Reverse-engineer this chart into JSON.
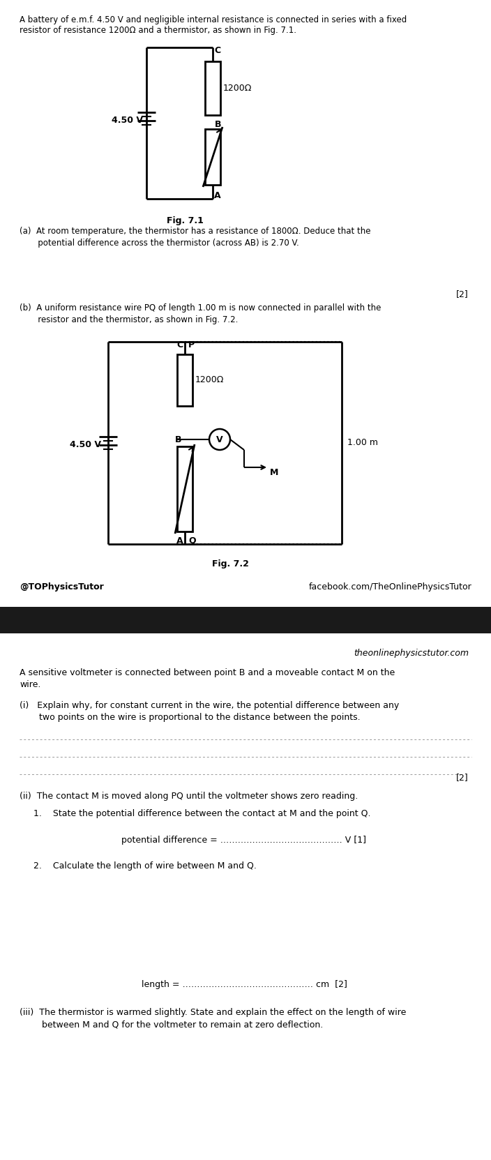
{
  "page_bg": "#ffffff",
  "dark_band_color": "#1a1a1a",
  "text_color": "#000000",
  "intro_text": "A battery of e.m.f. 4.50 V and negligible internal resistance is connected in series with a fixed\nresistor of resistance 1200Ω and a thermistor, as shown in Fig. 7.1.",
  "fig71_label": "Fig. 7.1",
  "fig72_label": "Fig. 7.2",
  "part_a_text_1": "(a)  At room temperature, the thermistor has a resistance of 1800Ω. Deduce that the",
  "part_a_text_2": "       potential difference across the thermistor (across AB) is 2.70 V.",
  "marks_2": "[2]",
  "part_b_text_1": "(b)  A uniform resistance wire PQ of length 1.00 m is now connected in parallel with the",
  "part_b_text_2": "       resistor and the thermistor, as shown in Fig. 7.2.",
  "social_left": "@TOPhysicsTutor",
  "social_right": "facebook.com/TheOnlinePhysicsTutor",
  "website": "theonlinephysicstutor.com",
  "continue_line1": "A sensitive voltmeter is connected between point B and a moveable contact M on the",
  "continue_line2": "wire.",
  "part_i_line1": "(i)   Explain why, for constant current in the wire, the potential difference between any",
  "part_i_line2": "       two points on the wire is proportional to the distance between the points.",
  "marks_2b": "[2]",
  "part_ii_text": "(ii)  The contact M is moved along PQ until the voltmeter shows zero reading.",
  "part_1_text": "1.    State the potential difference between the contact at M and the point Q.",
  "pd_line": "potential difference = …………………………………… V [1]",
  "part_2_text": "2.    Calculate the length of wire between M and Q.",
  "length_line": "length = ……………………………………… cm  [2]",
  "part_iii_line1": "(iii)  The thermistor is warmed slightly. State and explain the effect on the length of wire",
  "part_iii_line2": "        between M and Q for the voltmeter to remain at zero deflection."
}
